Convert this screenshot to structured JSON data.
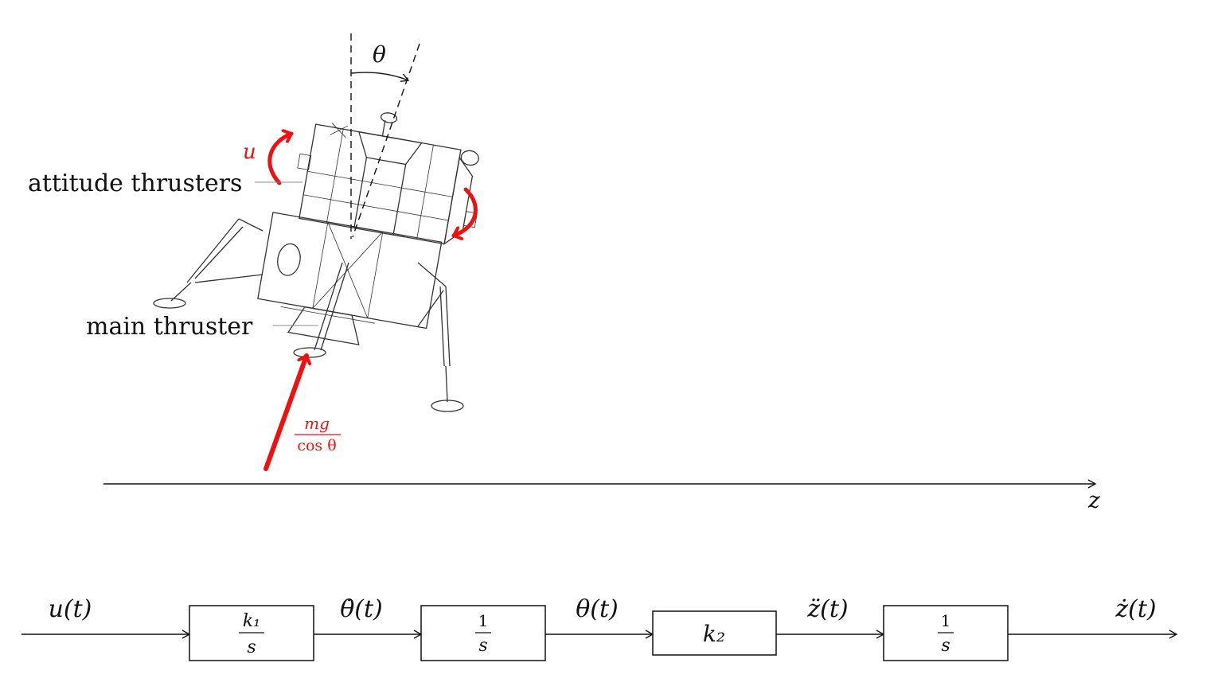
{
  "figure": {
    "angle_label": "θ",
    "control_label": "u",
    "attitude_label": "attitude thrusters",
    "main_label": "main thruster",
    "force_num": "mg",
    "force_den": "cos θ",
    "axis_label": "z",
    "accent_color": "#ee1111"
  },
  "block_diagram": {
    "input_signal": "u(t)",
    "blocks": [
      {
        "num": "k₁",
        "den": "s"
      },
      {
        "num": "1",
        "den": "s"
      },
      {
        "label": "k₂"
      },
      {
        "num": "1",
        "den": "s"
      }
    ],
    "signals": [
      "θ̇(t)",
      "θ(t)",
      "z̈(t)",
      "ż(t)"
    ]
  }
}
